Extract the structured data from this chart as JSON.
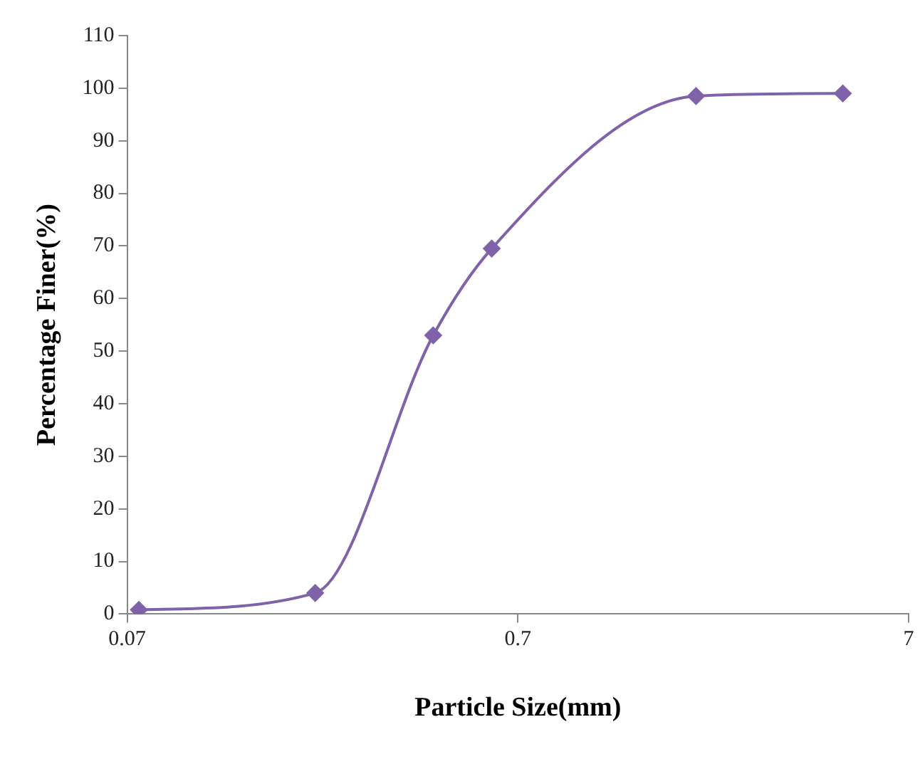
{
  "chart_data": {
    "type": "line",
    "xlabel": "Particle Size(mm)",
    "ylabel": "Percentage Finer(%)",
    "x": [
      0.075,
      0.212,
      0.425,
      0.6,
      2,
      4.75
    ],
    "series": [
      {
        "color": "#7f62a8",
        "values": [
          0.8,
          4,
          53,
          69.5,
          98.5,
          99
        ]
      }
    ],
    "log": "x",
    "xlim": [
      0.07,
      7
    ],
    "xticks": [
      0.07,
      0.7,
      7
    ],
    "ylim": [
      0,
      110
    ],
    "yticks": [
      0,
      10,
      20,
      30,
      40,
      50,
      60,
      70,
      80,
      90,
      100,
      110
    ],
    "grid": false,
    "legend": false,
    "marker": "diamond",
    "line_style": "solid"
  }
}
